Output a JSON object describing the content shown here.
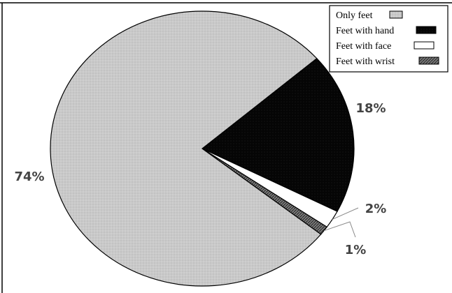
{
  "chart_data": {
    "type": "pie",
    "title": "",
    "series": [
      {
        "name": "Only feet",
        "value": 74,
        "label": "74%",
        "color": "#c8c8c8"
      },
      {
        "name": "Feet with hand",
        "value": 18,
        "label": "18%",
        "color": "#000000"
      },
      {
        "name": "Feet with face",
        "value": 2,
        "label": "2%",
        "color": "#ffffff"
      },
      {
        "name": "Feet with wrist",
        "value": 1,
        "label": "1%",
        "color": "#6a6a6a"
      }
    ],
    "legend_position": "top-right"
  }
}
